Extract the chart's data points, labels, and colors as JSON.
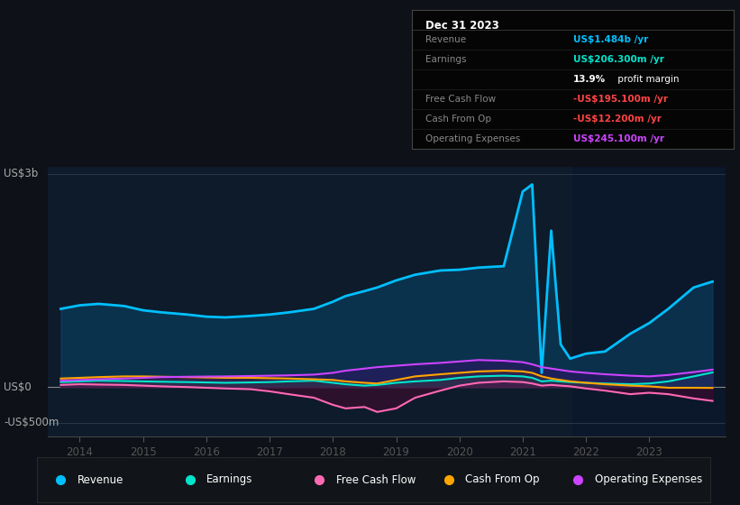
{
  "bg_color": "#0e1117",
  "plot_bg_color": "#0d1b2a",
  "ylabel_top": "US$3b",
  "ylabel_zero": "US$0",
  "ylabel_neg": "-US$500m",
  "x_ticks": [
    2014,
    2015,
    2016,
    2017,
    2018,
    2019,
    2020,
    2021,
    2022,
    2023
  ],
  "ylim": [
    -700,
    3100
  ],
  "legend_items": [
    {
      "label": "Revenue",
      "color": "#00bfff"
    },
    {
      "label": "Earnings",
      "color": "#00e5cc"
    },
    {
      "label": "Free Cash Flow",
      "color": "#ff69b4"
    },
    {
      "label": "Cash From Op",
      "color": "#ffa500"
    },
    {
      "label": "Operating Expenses",
      "color": "#cc44ff"
    }
  ],
  "info_box": {
    "title": "Dec 31 2023",
    "rows": [
      {
        "label": "Revenue",
        "value": "US$1.484b /yr",
        "value_color": "#00bfff"
      },
      {
        "label": "Earnings",
        "value": "US$206.300m /yr",
        "value_color": "#00e5cc"
      },
      {
        "label": "",
        "value": "13.9%",
        "value2": " profit margin",
        "value_color": "#ffffff",
        "bold_part": true
      },
      {
        "label": "Free Cash Flow",
        "value": "-US$195.100m /yr",
        "value_color": "#ff4444"
      },
      {
        "label": "Cash From Op",
        "value": "-US$12.200m /yr",
        "value_color": "#ff4444"
      },
      {
        "label": "Operating Expenses",
        "value": "US$245.100m /yr",
        "value_color": "#cc44ff"
      }
    ]
  },
  "series": {
    "years": [
      2013.7,
      2014.0,
      2014.3,
      2014.7,
      2015.0,
      2015.3,
      2015.7,
      2016.0,
      2016.3,
      2016.7,
      2017.0,
      2017.3,
      2017.7,
      2018.0,
      2018.2,
      2018.5,
      2018.7,
      2019.0,
      2019.3,
      2019.7,
      2020.0,
      2020.3,
      2020.7,
      2021.0,
      2021.15,
      2021.3,
      2021.45,
      2021.6,
      2021.75,
      2022.0,
      2022.3,
      2022.7,
      2023.0,
      2023.3,
      2023.7,
      2024.0
    ],
    "revenue": [
      1100,
      1150,
      1170,
      1140,
      1080,
      1050,
      1020,
      990,
      980,
      1000,
      1020,
      1050,
      1100,
      1200,
      1280,
      1350,
      1400,
      1500,
      1580,
      1640,
      1650,
      1680,
      1700,
      2750,
      2850,
      200,
      2200,
      600,
      400,
      470,
      500,
      750,
      900,
      1100,
      1400,
      1484
    ],
    "earnings": [
      70,
      80,
      90,
      85,
      80,
      75,
      70,
      65,
      60,
      65,
      70,
      80,
      90,
      60,
      40,
      20,
      30,
      60,
      80,
      100,
      130,
      150,
      160,
      150,
      130,
      80,
      90,
      80,
      70,
      60,
      50,
      40,
      50,
      80,
      150,
      206
    ],
    "free_cash_flow": [
      30,
      40,
      35,
      30,
      20,
      10,
      0,
      -10,
      -20,
      -30,
      -60,
      -100,
      -150,
      -250,
      -300,
      -280,
      -350,
      -300,
      -150,
      -50,
      20,
      60,
      80,
      70,
      50,
      20,
      30,
      20,
      10,
      -20,
      -50,
      -100,
      -80,
      -100,
      -160,
      -195
    ],
    "cash_from_op": [
      120,
      130,
      140,
      150,
      150,
      145,
      140,
      135,
      130,
      130,
      125,
      120,
      110,
      100,
      80,
      60,
      50,
      100,
      150,
      180,
      200,
      220,
      230,
      220,
      200,
      150,
      120,
      100,
      80,
      60,
      40,
      20,
      10,
      -10,
      -10,
      -12
    ],
    "operating_expenses": [
      90,
      100,
      110,
      120,
      130,
      140,
      145,
      148,
      150,
      155,
      160,
      165,
      175,
      200,
      230,
      260,
      280,
      300,
      320,
      340,
      360,
      380,
      370,
      350,
      320,
      280,
      260,
      240,
      220,
      200,
      180,
      160,
      150,
      170,
      210,
      245
    ]
  }
}
